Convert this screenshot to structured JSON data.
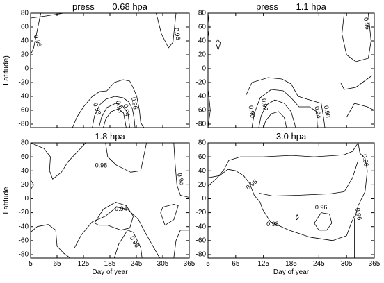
{
  "chart_data": [
    {
      "type": "contour",
      "title": "press =    0.68 hpa",
      "ylabel": "Latitude)",
      "xlabel": "",
      "xlim": [
        5,
        365
      ],
      "ylim": [
        -85,
        80
      ],
      "yticks": [
        80,
        60,
        40,
        20,
        0,
        -20,
        -40,
        -60,
        -80
      ],
      "xticks": [],
      "contour_labels": [
        {
          "text": "0.96",
          "x": 20,
          "y": 40,
          "angle": 70
        },
        {
          "text": "0.96",
          "x": 337,
          "y": 50,
          "angle": 80
        },
        {
          "text": "0.98",
          "x": 155,
          "y": -58,
          "angle": 70
        },
        {
          "text": "0.96",
          "x": 205,
          "y": -55,
          "angle": 80
        },
        {
          "text": "0.94",
          "x": 222,
          "y": -60,
          "angle": 80
        },
        {
          "text": "0.96",
          "x": 240,
          "y": -50,
          "angle": 80
        }
      ],
      "contours": [
        [
          [
            5,
            73
          ],
          [
            40,
            76
          ],
          [
            80,
            80
          ]
        ],
        [
          [
            5,
            20
          ],
          [
            12,
            30
          ],
          [
            20,
            55
          ],
          [
            28,
            80
          ]
        ],
        [
          [
            290,
            80
          ],
          [
            302,
            50
          ],
          [
            318,
            30
          ],
          [
            328,
            38
          ],
          [
            335,
            80
          ]
        ],
        [
          [
            100,
            -85
          ],
          [
            110,
            -70
          ],
          [
            125,
            -55
          ],
          [
            145,
            -40
          ],
          [
            162,
            -33
          ],
          [
            178,
            -32
          ],
          [
            195,
            -20
          ],
          [
            215,
            -16
          ],
          [
            230,
            -18
          ],
          [
            238,
            -28
          ],
          [
            246,
            -40
          ],
          [
            252,
            -60
          ],
          [
            255,
            -78
          ],
          [
            262,
            -85
          ]
        ],
        [
          [
            145,
            -85
          ],
          [
            150,
            -68
          ],
          [
            162,
            -52
          ],
          [
            176,
            -44
          ],
          [
            196,
            -40
          ],
          [
            215,
            -42
          ],
          [
            228,
            -48
          ],
          [
            236,
            -58
          ],
          [
            240,
            -72
          ],
          [
            242,
            -85
          ]
        ],
        [
          [
            160,
            -85
          ],
          [
            166,
            -70
          ],
          [
            178,
            -56
          ],
          [
            198,
            -50
          ],
          [
            214,
            -54
          ],
          [
            226,
            -64
          ],
          [
            230,
            -85
          ]
        ],
        [
          [
            170,
            -85
          ],
          [
            176,
            -72
          ],
          [
            188,
            -62
          ],
          [
            204,
            -58
          ],
          [
            216,
            -64
          ],
          [
            222,
            -85
          ]
        ]
      ]
    },
    {
      "type": "contour",
      "title": "press =    1.1 hpa",
      "ylabel": "",
      "xlabel": "",
      "xlim": [
        5,
        365
      ],
      "ylim": [
        -85,
        80
      ],
      "yticks": [
        80,
        60,
        40,
        20,
        0,
        -20,
        -40,
        -60,
        -80
      ],
      "xticks": [],
      "contour_labels": [
        {
          "text": "0.96",
          "x": 348,
          "y": 65,
          "angle": 80
        },
        {
          "text": "0.96",
          "x": 99,
          "y": -62,
          "angle": 80
        },
        {
          "text": "0.92",
          "x": 127,
          "y": -52,
          "angle": 80
        },
        {
          "text": "0.94",
          "x": 242,
          "y": -63,
          "angle": 80
        },
        {
          "text": "0.98",
          "x": 262,
          "y": -62,
          "angle": 80
        }
      ],
      "contours": [
        [
          [
            5,
            80
          ],
          [
            8,
            60
          ],
          [
            5,
            45
          ]
        ],
        [
          [
            5,
            -85
          ],
          [
            10,
            -60
          ],
          [
            7,
            -40
          ],
          [
            5,
            -30
          ]
        ],
        [
          [
            22,
            37
          ],
          [
            27,
            27
          ],
          [
            32,
            37
          ],
          [
            26,
            42
          ],
          [
            22,
            37
          ]
        ],
        [
          [
            300,
            80
          ],
          [
            295,
            50
          ],
          [
            305,
            20
          ],
          [
            325,
            10
          ],
          [
            352,
            15
          ],
          [
            358,
            40
          ],
          [
            352,
            80
          ]
        ],
        [
          [
            292,
            -20
          ],
          [
            300,
            -30
          ],
          [
            325,
            -27
          ],
          [
            360,
            -10
          ]
        ],
        [
          [
            305,
            -70
          ],
          [
            322,
            -50
          ],
          [
            350,
            -55
          ],
          [
            365,
            -60
          ]
        ],
        [
          [
            86,
            -40
          ],
          [
            100,
            -20
          ],
          [
            135,
            -13
          ],
          [
            165,
            -15
          ],
          [
            185,
            -22
          ],
          [
            200,
            -40
          ],
          [
            225,
            -45
          ],
          [
            250,
            -50
          ],
          [
            255,
            -70
          ],
          [
            258,
            -85
          ]
        ],
        [
          [
            100,
            -85
          ],
          [
            105,
            -65
          ],
          [
            118,
            -42
          ],
          [
            142,
            -30
          ],
          [
            168,
            -32
          ],
          [
            185,
            -42
          ],
          [
            202,
            -55
          ],
          [
            225,
            -55
          ],
          [
            240,
            -62
          ],
          [
            242,
            -85
          ]
        ],
        [
          [
            115,
            -85
          ],
          [
            120,
            -68
          ],
          [
            132,
            -52
          ],
          [
            150,
            -45
          ],
          [
            170,
            -50
          ],
          [
            185,
            -62
          ],
          [
            195,
            -85
          ]
        ],
        [
          [
            125,
            -85
          ],
          [
            130,
            -75
          ],
          [
            142,
            -65
          ],
          [
            158,
            -62
          ],
          [
            170,
            -70
          ],
          [
            175,
            -85
          ]
        ]
      ]
    },
    {
      "type": "contour",
      "title": "1.8 hpa",
      "ylabel": "Latitude",
      "xlabel": "",
      "xlim": [
        5,
        365
      ],
      "ylim": [
        -85,
        80
      ],
      "yticks": [
        80,
        60,
        40,
        20,
        0,
        -20,
        -40,
        -60,
        -80
      ],
      "xticks": [],
      "contour_labels": [
        {
          "text": "0.98",
          "x": 165,
          "y": 47,
          "angle": 0
        },
        {
          "text": "0.96",
          "x": 345,
          "y": 28,
          "angle": 75
        },
        {
          "text": "0.94",
          "x": 210,
          "y": -15,
          "angle": 0
        },
        {
          "text": "0.96",
          "x": 240,
          "y": -62,
          "angle": 60
        }
      ],
      "contours": [
        [
          [
            5,
            80
          ],
          [
            35,
            72
          ],
          [
            50,
            60
          ],
          [
            48,
            40
          ],
          [
            55,
            28
          ],
          [
            75,
            38
          ],
          [
            90,
            53
          ],
          [
            115,
            70
          ],
          [
            130,
            80
          ]
        ],
        [
          [
            175,
            80
          ],
          [
            180,
            60
          ],
          [
            200,
            48
          ],
          [
            232,
            38
          ],
          [
            255,
            40
          ],
          [
            268,
            80
          ]
        ],
        [
          [
            5,
            27
          ],
          [
            12,
            20
          ],
          [
            5,
            13
          ]
        ],
        [
          [
            330,
            80
          ],
          [
            333,
            50
          ],
          [
            337,
            20
          ],
          [
            345,
            5
          ],
          [
            365,
            2
          ]
        ],
        [
          [
            5,
            -48
          ],
          [
            20,
            -40
          ],
          [
            45,
            -37
          ],
          [
            62,
            -45
          ],
          [
            65,
            -68
          ],
          [
            80,
            -78
          ],
          [
            95,
            -85
          ]
        ],
        [
          [
            105,
            -70
          ],
          [
            120,
            -52
          ],
          [
            145,
            -33
          ],
          [
            175,
            -25
          ],
          [
            200,
            -12
          ],
          [
            225,
            -15
          ],
          [
            250,
            -30
          ],
          [
            262,
            -45
          ],
          [
            280,
            -65
          ],
          [
            298,
            -85
          ]
        ],
        [
          [
            150,
            -35
          ],
          [
            170,
            -15
          ],
          [
            198,
            -5
          ],
          [
            222,
            -10
          ],
          [
            238,
            -25
          ],
          [
            230,
            -42
          ],
          [
            210,
            -45
          ],
          [
            180,
            -38
          ],
          [
            160,
            -38
          ],
          [
            150,
            -35
          ]
        ],
        [
          [
            195,
            -85
          ],
          [
            205,
            -65
          ],
          [
            225,
            -45
          ],
          [
            238,
            -48
          ],
          [
            255,
            -70
          ],
          [
            258,
            -85
          ]
        ],
        [
          [
            330,
            -85
          ],
          [
            335,
            -60
          ],
          [
            345,
            -45
          ],
          [
            365,
            -45
          ]
        ],
        [
          [
            300,
            -20
          ],
          [
            310,
            -38
          ],
          [
            330,
            -30
          ],
          [
            340,
            -10
          ],
          [
            330,
            -8
          ],
          [
            305,
            -12
          ],
          [
            300,
            -20
          ]
        ]
      ]
    },
    {
      "type": "contour",
      "title": "3.0 hpa",
      "ylabel": "",
      "xlabel": "",
      "xlim": [
        5,
        365
      ],
      "ylim": [
        -85,
        80
      ],
      "yticks": [
        80,
        60,
        40,
        20,
        0,
        -20,
        -40,
        -60,
        -80
      ],
      "xticks": [],
      "contour_labels": [
        {
          "text": "0.96",
          "x": 345,
          "y": 55,
          "angle": 80
        },
        {
          "text": "0.98",
          "x": 100,
          "y": 20,
          "angle": -40
        },
        {
          "text": "0.96",
          "x": 250,
          "y": -13,
          "angle": 0
        },
        {
          "text": "0.98",
          "x": 145,
          "y": -37,
          "angle": 0
        },
        {
          "text": "0.96",
          "x": 330,
          "y": -22,
          "angle": 80
        }
      ],
      "contours": [
        [
          [
            330,
            80
          ],
          [
            334,
            65
          ],
          [
            345,
            58
          ],
          [
            350,
            40
          ],
          [
            345,
            10
          ],
          [
            330,
            -10
          ],
          [
            322,
            -30
          ],
          [
            322,
            -55
          ],
          [
            322,
            -85
          ]
        ],
        [
          [
            5,
            18
          ],
          [
            25,
            30
          ],
          [
            40,
            42
          ],
          [
            50,
            55
          ],
          [
            75,
            60
          ],
          [
            125,
            60
          ],
          [
            185,
            62
          ],
          [
            235,
            60
          ],
          [
            282,
            62
          ],
          [
            300,
            63
          ],
          [
            318,
            68
          ],
          [
            330,
            80
          ]
        ],
        [
          [
            5,
            30
          ],
          [
            30,
            33
          ],
          [
            48,
            42
          ],
          [
            65,
            40
          ],
          [
            82,
            33
          ],
          [
            95,
            22
          ],
          [
            105,
            5
          ],
          [
            118,
            -5
          ],
          [
            123,
            -15
          ],
          [
            140,
            -33
          ],
          [
            180,
            -45
          ],
          [
            225,
            -55
          ],
          [
            275,
            -60
          ],
          [
            305,
            -53
          ],
          [
            315,
            -35
          ],
          [
            322,
            -25
          ]
        ],
        [
          [
            115,
            8
          ],
          [
            145,
            4
          ],
          [
            200,
            5
          ],
          [
            270,
            7
          ],
          [
            300,
            10
          ],
          [
            318,
            30
          ],
          [
            330,
            55
          ]
        ],
        [
          [
            235,
            -35
          ],
          [
            250,
            -20
          ],
          [
            268,
            -22
          ],
          [
            273,
            -35
          ],
          [
            262,
            -45
          ],
          [
            245,
            -45
          ],
          [
            235,
            -35
          ]
        ],
        [
          [
            195,
            -28
          ],
          [
            198,
            -23
          ],
          [
            201,
            -27
          ],
          [
            197,
            -30
          ],
          [
            195,
            -28
          ]
        ]
      ]
    }
  ],
  "shared_axes": {
    "xlabel": "Day of year",
    "xticks": [
      5,
      65,
      125,
      185,
      245,
      305,
      365
    ]
  }
}
